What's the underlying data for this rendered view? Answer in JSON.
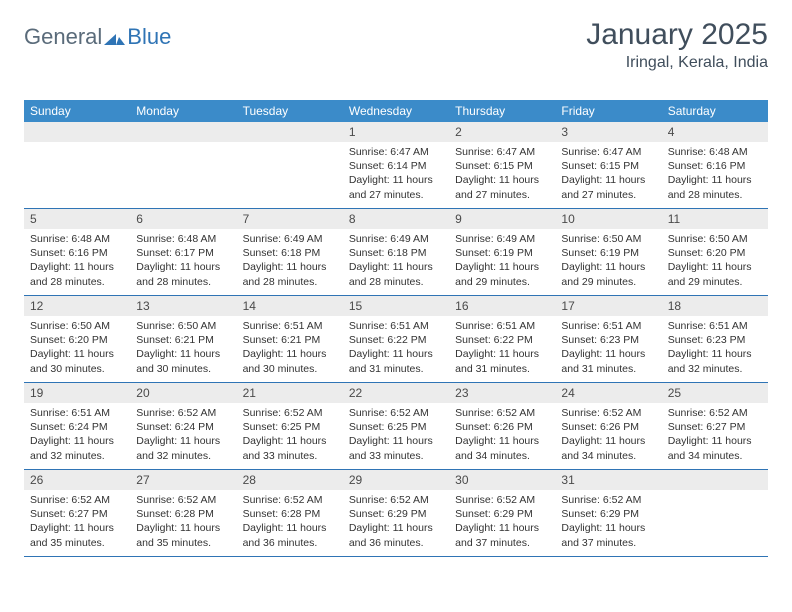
{
  "logo": {
    "text1": "General",
    "text2": "Blue"
  },
  "title": "January 2025",
  "location": "Iringal, Kerala, India",
  "colors": {
    "header_bg": "#3b8bc9",
    "accent": "#2f74b5",
    "daynum_bg": "#ececec",
    "text": "#333333",
    "title_color": "#404e5c"
  },
  "day_names": [
    "Sunday",
    "Monday",
    "Tuesday",
    "Wednesday",
    "Thursday",
    "Friday",
    "Saturday"
  ],
  "weeks": [
    [
      {
        "n": "",
        "sr": "",
        "ss": "",
        "dl": ""
      },
      {
        "n": "",
        "sr": "",
        "ss": "",
        "dl": ""
      },
      {
        "n": "",
        "sr": "",
        "ss": "",
        "dl": ""
      },
      {
        "n": "1",
        "sr": "Sunrise: 6:47 AM",
        "ss": "Sunset: 6:14 PM",
        "dl": "Daylight: 11 hours and 27 minutes."
      },
      {
        "n": "2",
        "sr": "Sunrise: 6:47 AM",
        "ss": "Sunset: 6:15 PM",
        "dl": "Daylight: 11 hours and 27 minutes."
      },
      {
        "n": "3",
        "sr": "Sunrise: 6:47 AM",
        "ss": "Sunset: 6:15 PM",
        "dl": "Daylight: 11 hours and 27 minutes."
      },
      {
        "n": "4",
        "sr": "Sunrise: 6:48 AM",
        "ss": "Sunset: 6:16 PM",
        "dl": "Daylight: 11 hours and 28 minutes."
      }
    ],
    [
      {
        "n": "5",
        "sr": "Sunrise: 6:48 AM",
        "ss": "Sunset: 6:16 PM",
        "dl": "Daylight: 11 hours and 28 minutes."
      },
      {
        "n": "6",
        "sr": "Sunrise: 6:48 AM",
        "ss": "Sunset: 6:17 PM",
        "dl": "Daylight: 11 hours and 28 minutes."
      },
      {
        "n": "7",
        "sr": "Sunrise: 6:49 AM",
        "ss": "Sunset: 6:18 PM",
        "dl": "Daylight: 11 hours and 28 minutes."
      },
      {
        "n": "8",
        "sr": "Sunrise: 6:49 AM",
        "ss": "Sunset: 6:18 PM",
        "dl": "Daylight: 11 hours and 28 minutes."
      },
      {
        "n": "9",
        "sr": "Sunrise: 6:49 AM",
        "ss": "Sunset: 6:19 PM",
        "dl": "Daylight: 11 hours and 29 minutes."
      },
      {
        "n": "10",
        "sr": "Sunrise: 6:50 AM",
        "ss": "Sunset: 6:19 PM",
        "dl": "Daylight: 11 hours and 29 minutes."
      },
      {
        "n": "11",
        "sr": "Sunrise: 6:50 AM",
        "ss": "Sunset: 6:20 PM",
        "dl": "Daylight: 11 hours and 29 minutes."
      }
    ],
    [
      {
        "n": "12",
        "sr": "Sunrise: 6:50 AM",
        "ss": "Sunset: 6:20 PM",
        "dl": "Daylight: 11 hours and 30 minutes."
      },
      {
        "n": "13",
        "sr": "Sunrise: 6:50 AM",
        "ss": "Sunset: 6:21 PM",
        "dl": "Daylight: 11 hours and 30 minutes."
      },
      {
        "n": "14",
        "sr": "Sunrise: 6:51 AM",
        "ss": "Sunset: 6:21 PM",
        "dl": "Daylight: 11 hours and 30 minutes."
      },
      {
        "n": "15",
        "sr": "Sunrise: 6:51 AM",
        "ss": "Sunset: 6:22 PM",
        "dl": "Daylight: 11 hours and 31 minutes."
      },
      {
        "n": "16",
        "sr": "Sunrise: 6:51 AM",
        "ss": "Sunset: 6:22 PM",
        "dl": "Daylight: 11 hours and 31 minutes."
      },
      {
        "n": "17",
        "sr": "Sunrise: 6:51 AM",
        "ss": "Sunset: 6:23 PM",
        "dl": "Daylight: 11 hours and 31 minutes."
      },
      {
        "n": "18",
        "sr": "Sunrise: 6:51 AM",
        "ss": "Sunset: 6:23 PM",
        "dl": "Daylight: 11 hours and 32 minutes."
      }
    ],
    [
      {
        "n": "19",
        "sr": "Sunrise: 6:51 AM",
        "ss": "Sunset: 6:24 PM",
        "dl": "Daylight: 11 hours and 32 minutes."
      },
      {
        "n": "20",
        "sr": "Sunrise: 6:52 AM",
        "ss": "Sunset: 6:24 PM",
        "dl": "Daylight: 11 hours and 32 minutes."
      },
      {
        "n": "21",
        "sr": "Sunrise: 6:52 AM",
        "ss": "Sunset: 6:25 PM",
        "dl": "Daylight: 11 hours and 33 minutes."
      },
      {
        "n": "22",
        "sr": "Sunrise: 6:52 AM",
        "ss": "Sunset: 6:25 PM",
        "dl": "Daylight: 11 hours and 33 minutes."
      },
      {
        "n": "23",
        "sr": "Sunrise: 6:52 AM",
        "ss": "Sunset: 6:26 PM",
        "dl": "Daylight: 11 hours and 34 minutes."
      },
      {
        "n": "24",
        "sr": "Sunrise: 6:52 AM",
        "ss": "Sunset: 6:26 PM",
        "dl": "Daylight: 11 hours and 34 minutes."
      },
      {
        "n": "25",
        "sr": "Sunrise: 6:52 AM",
        "ss": "Sunset: 6:27 PM",
        "dl": "Daylight: 11 hours and 34 minutes."
      }
    ],
    [
      {
        "n": "26",
        "sr": "Sunrise: 6:52 AM",
        "ss": "Sunset: 6:27 PM",
        "dl": "Daylight: 11 hours and 35 minutes."
      },
      {
        "n": "27",
        "sr": "Sunrise: 6:52 AM",
        "ss": "Sunset: 6:28 PM",
        "dl": "Daylight: 11 hours and 35 minutes."
      },
      {
        "n": "28",
        "sr": "Sunrise: 6:52 AM",
        "ss": "Sunset: 6:28 PM",
        "dl": "Daylight: 11 hours and 36 minutes."
      },
      {
        "n": "29",
        "sr": "Sunrise: 6:52 AM",
        "ss": "Sunset: 6:29 PM",
        "dl": "Daylight: 11 hours and 36 minutes."
      },
      {
        "n": "30",
        "sr": "Sunrise: 6:52 AM",
        "ss": "Sunset: 6:29 PM",
        "dl": "Daylight: 11 hours and 37 minutes."
      },
      {
        "n": "31",
        "sr": "Sunrise: 6:52 AM",
        "ss": "Sunset: 6:29 PM",
        "dl": "Daylight: 11 hours and 37 minutes."
      },
      {
        "n": "",
        "sr": "",
        "ss": "",
        "dl": ""
      }
    ]
  ]
}
